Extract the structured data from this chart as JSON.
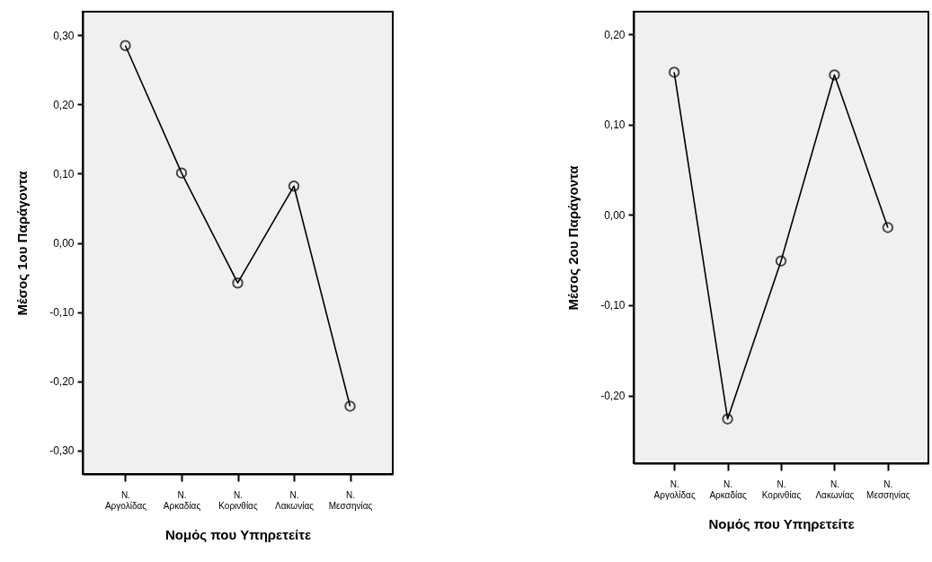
{
  "chart_data": [
    {
      "type": "line",
      "xlabel": "Νομός που Υπηρετείτε",
      "ylabel": "Μέσος 1ου Παράγοντα",
      "categories": [
        "Ν. Αργολίδας",
        "Ν. Αρκαδίας",
        "Ν. Κορινθίας",
        "Ν. Λακωνίας",
        "Ν. Μεσσηνίας"
      ],
      "series": [
        {
          "color": "#000000",
          "values": [
            0.285,
            0.101,
            -0.058,
            0.082,
            -0.236
          ]
        }
      ],
      "ylim": [
        -0.334,
        0.334
      ],
      "yticks": [
        {
          "value": -0.3,
          "label": "-0,30"
        },
        {
          "value": -0.2,
          "label": "-0,20"
        },
        {
          "value": -0.1,
          "label": "-0,10"
        },
        {
          "value": 0,
          "label": "0,00"
        },
        {
          "value": 0.1,
          "label": "0,10"
        },
        {
          "value": 0.2,
          "label": "0,20"
        },
        {
          "value": 0.3,
          "label": "0,30"
        }
      ],
      "marker": "circle",
      "line_style": "solid",
      "grid": false
    },
    {
      "type": "line",
      "xlabel": "Νομός που Υπηρετείτε",
      "ylabel": "Μέσος 2ου Παράγοντα",
      "categories": [
        "Ν. Αργολίδας",
        "Ν. Αρκαδίας",
        "Ν. Κορινθίας",
        "Ν. Λακωνίας",
        "Ν. Μεσσηνίας"
      ],
      "series": [
        {
          "color": "#000000",
          "values": [
            0.158,
            -0.226,
            -0.051,
            0.155,
            -0.014
          ]
        }
      ],
      "ylim": [
        -0.275,
        0.225
      ],
      "yticks": [
        {
          "value": -0.2,
          "label": "-0,20"
        },
        {
          "value": -0.1,
          "label": "-0,10"
        },
        {
          "value": 0,
          "label": "0,00"
        },
        {
          "value": 0.1,
          "label": "0,10"
        },
        {
          "value": 0.2,
          "label": "0,20"
        }
      ],
      "marker": "circle",
      "line_style": "solid",
      "grid": false
    }
  ]
}
